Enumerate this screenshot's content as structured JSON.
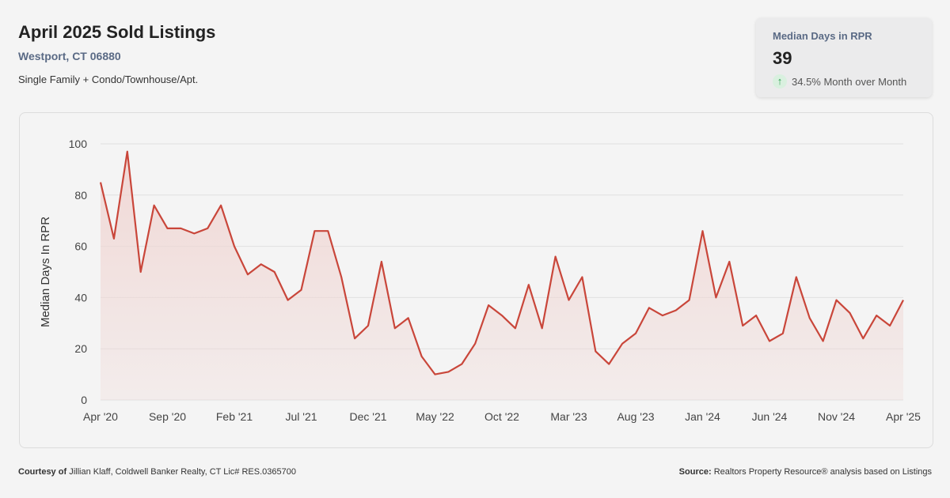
{
  "header": {
    "title": "April 2025 Sold Listings",
    "location": "Westport, CT 06880",
    "property_types": "Single Family + Condo/Townhouse/Apt."
  },
  "kpi": {
    "label": "Median Days in RPR",
    "value": "39",
    "change": "34.5% Month over Month",
    "direction": "up",
    "icon": "arrow-up-icon"
  },
  "footer": {
    "courtesy_label": "Courtesy of",
    "courtesy_text": "Jillian Klaff, Coldwell Banker Realty, CT Lic# RES.0365700",
    "source_label": "Source:",
    "source_text": "Realtors Property Resource® analysis based on Listings"
  },
  "colors": {
    "line": "#c9463a",
    "fill": "#f0d5d2",
    "grid": "#e0e0e0"
  },
  "chart_data": {
    "type": "area",
    "title": "",
    "ylabel": "Median Days In RPR",
    "xlabel": "",
    "ylim": [
      0,
      100
    ],
    "yticks": [
      0,
      20,
      40,
      60,
      80,
      100
    ],
    "xtick_labels": [
      "Apr '20",
      "Sep '20",
      "Feb '21",
      "Jul '21",
      "Dec '21",
      "May '22",
      "Oct '22",
      "Mar '23",
      "Aug '23",
      "Jan '24",
      "Jun '24",
      "Nov '24",
      "Apr '25"
    ],
    "xtick_every": 5,
    "grid": true,
    "series": [
      {
        "name": "Median Days In RPR",
        "start": "Apr 2020",
        "end": "Apr 2025",
        "values": [
          85,
          63,
          97,
          50,
          76,
          67,
          67,
          65,
          67,
          76,
          60,
          49,
          53,
          50,
          39,
          43,
          66,
          66,
          48,
          24,
          29,
          54,
          28,
          32,
          17,
          10,
          11,
          14,
          22,
          37,
          33,
          28,
          45,
          28,
          56,
          39,
          48,
          19,
          14,
          22,
          26,
          36,
          33,
          35,
          39,
          66,
          40,
          54,
          29,
          33,
          23,
          26,
          48,
          32,
          23,
          39,
          34,
          24,
          33,
          29,
          39
        ]
      }
    ]
  }
}
